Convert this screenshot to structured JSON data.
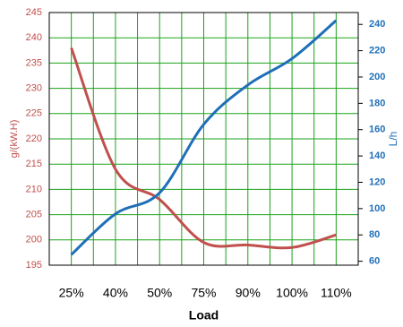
{
  "chart_data": {
    "type": "line",
    "categories": [
      "25%",
      "40%",
      "50%",
      "75%",
      "90%",
      "100%",
      "110%"
    ],
    "xlabel": "Load",
    "ylabel": "g/(kW.H)",
    "y2label": "L/h",
    "ylim": [
      195,
      245
    ],
    "yticks": [
      195,
      200,
      205,
      210,
      215,
      220,
      225,
      230,
      235,
      240,
      245
    ],
    "y2lim": [
      57,
      249
    ],
    "y2ticks": [
      60,
      80,
      100,
      120,
      140,
      160,
      180,
      200,
      220,
      240
    ],
    "grid": true,
    "grid_color": "#1aa31a",
    "series": [
      {
        "name": "g/(kW.H)",
        "color": "#c0504d",
        "values": [
          238,
          214,
          208,
          199.5,
          199,
          198.5,
          201
        ]
      },
      {
        "name": "L/h",
        "color": "#1f6fb8",
        "axis": "y2",
        "values": [
          65,
          96,
          112,
          164,
          194,
          214,
          243
        ]
      }
    ]
  }
}
